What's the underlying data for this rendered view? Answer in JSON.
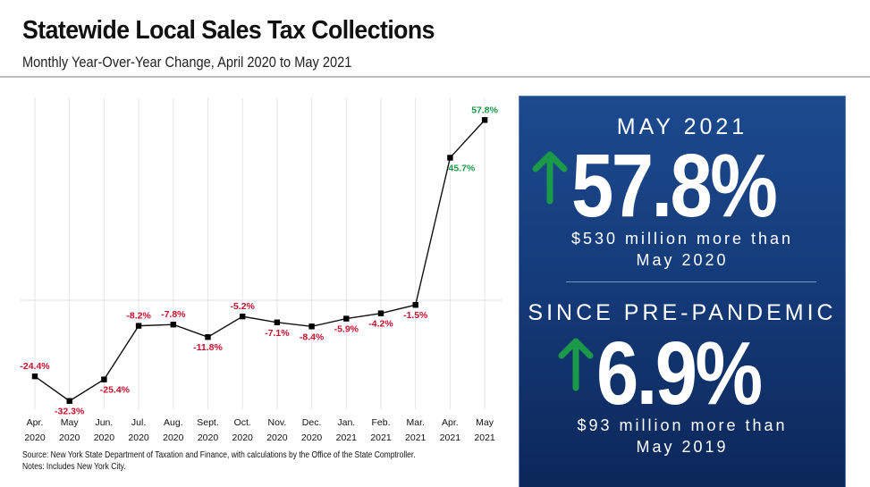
{
  "header": {
    "title": "Statewide Local Sales Tax Collections",
    "subtitle": "Monthly Year-Over-Year Change, April 2020 to May 2021"
  },
  "chart_data": {
    "type": "line",
    "title": "Statewide Local Sales Tax Collections",
    "subtitle": "Monthly Year-Over-Year Change, April 2020 to May 2021",
    "xlabel": "",
    "ylabel": "",
    "categories": [
      [
        "Apr.",
        "2020"
      ],
      [
        "May",
        "2020"
      ],
      [
        "Jun.",
        "2020"
      ],
      [
        "Jul.",
        "2020"
      ],
      [
        "Aug.",
        "2020"
      ],
      [
        "Sept.",
        "2020"
      ],
      [
        "Oct.",
        "2020"
      ],
      [
        "Nov.",
        "2020"
      ],
      [
        "Dec.",
        "2020"
      ],
      [
        "Jan.",
        "2021"
      ],
      [
        "Feb.",
        "2021"
      ],
      [
        "Mar.",
        "2021"
      ],
      [
        "Apr.",
        "2021"
      ],
      [
        "May",
        "2021"
      ]
    ],
    "series": [
      {
        "name": "Year-over-year change (%)",
        "values": [
          -24.4,
          -32.3,
          -25.4,
          -8.2,
          -7.8,
          -11.8,
          -5.2,
          -7.1,
          -8.4,
          -5.9,
          -4.2,
          -1.5,
          45.7,
          57.8
        ],
        "labels": [
          "-24.4%",
          "-32.3%",
          "-25.4%",
          "-8.2%",
          "-7.8%",
          "-11.8%",
          "-5.2%",
          "-7.1%",
          "-8.4%",
          "-5.9%",
          "-4.2%",
          "-1.5%",
          "45.7%",
          "57.8%"
        ]
      }
    ],
    "ylim": [
      -35,
      62
    ],
    "zero_line": true,
    "grid": "vertical",
    "legend": "none",
    "colors": {
      "line": "#111111",
      "negative_label": "#c8102e",
      "positive_label": "#1a9a48",
      "grid": "#e6e6e6"
    }
  },
  "footnotes": {
    "source": "Source: New York State Department of Taxation and Finance, with calculations by the Office of the State Comptroller.",
    "notes": "Notes: Includes New York City."
  },
  "panel": {
    "block1": {
      "heading": "MAY 2021",
      "value": "57.8%",
      "line1": "$530 million more than",
      "line2": "May 2020",
      "arrow": "up-arrow-icon"
    },
    "block2": {
      "heading": "SINCE PRE-PANDEMIC",
      "value": "6.9%",
      "line1": "$93 million more than",
      "line2": "May 2019",
      "arrow": "up-arrow-icon"
    },
    "colors": {
      "arrow": "#1a9a48",
      "top": "#1c4a8e",
      "bottom": "#0c2759"
    }
  }
}
